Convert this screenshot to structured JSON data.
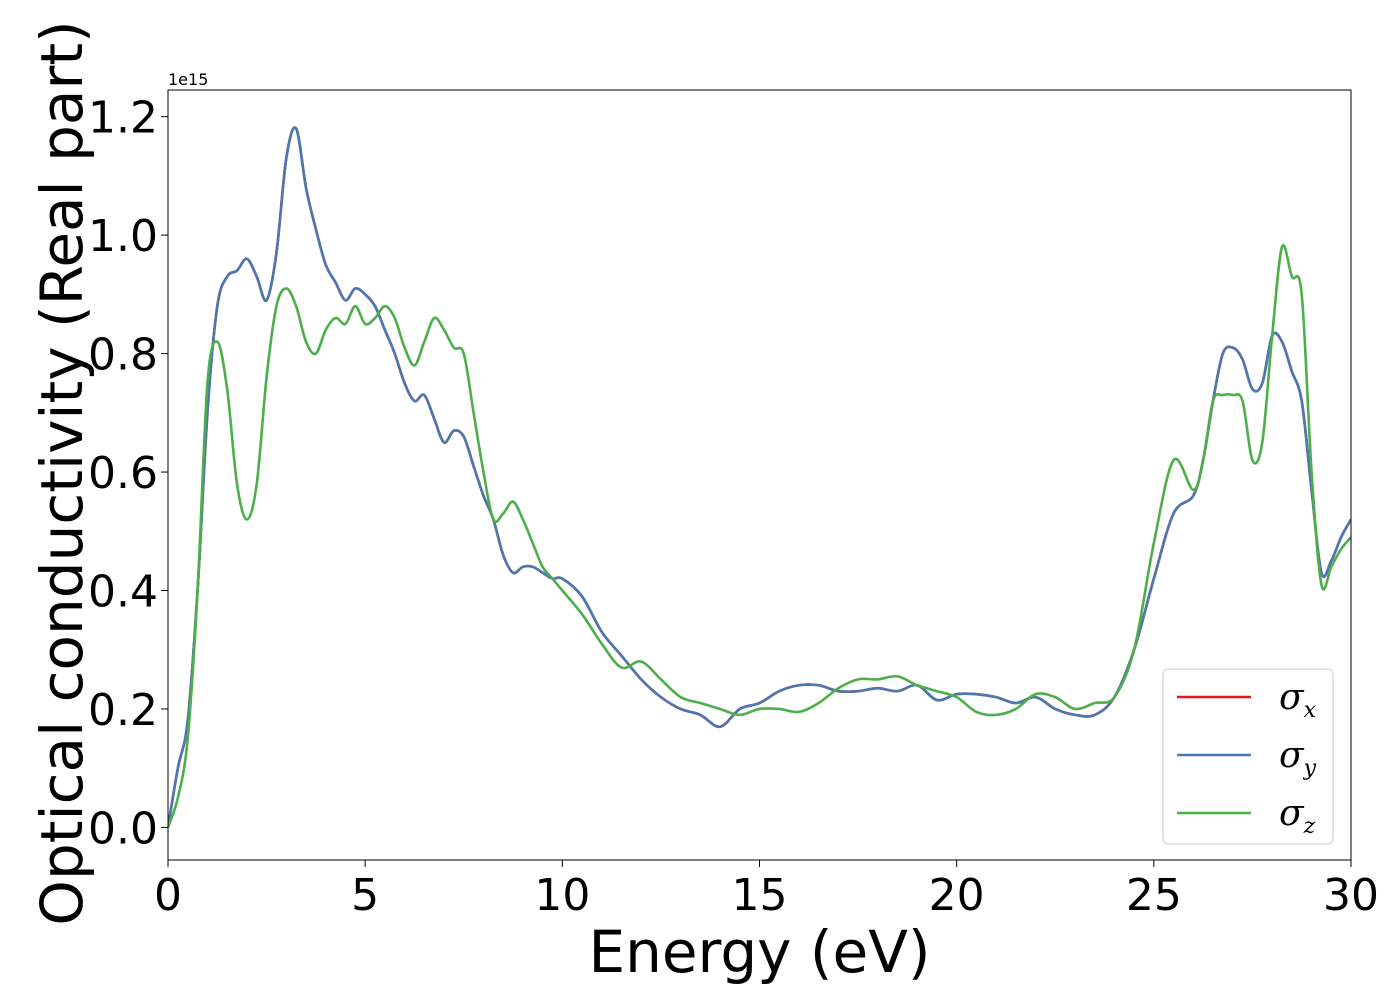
{
  "chart_data": {
    "type": "line",
    "title": "",
    "xlabel": "Energy (eV)",
    "ylabel": "Optical conductivity (Real part)",
    "y_offset_label": "1e15",
    "xlim": [
      0,
      30
    ],
    "ylim": [
      -0.055,
      1.245
    ],
    "xticks": [
      0,
      5,
      10,
      15,
      20,
      25,
      30
    ],
    "xtick_labels": [
      "0",
      "5",
      "10",
      "15",
      "20",
      "25",
      "30"
    ],
    "yticks": [
      0.0,
      0.2,
      0.4,
      0.6,
      0.8,
      1.0,
      1.2
    ],
    "ytick_labels": [
      "0.0",
      "0.2",
      "0.4",
      "0.6",
      "0.8",
      "1.0",
      "1.2"
    ],
    "grid": false,
    "legend_position": "lower right",
    "x": [
      0,
      0.25,
      0.5,
      0.75,
      1.0,
      1.25,
      1.5,
      1.75,
      2.0,
      2.25,
      2.5,
      2.75,
      3.0,
      3.25,
      3.5,
      3.75,
      4.0,
      4.25,
      4.5,
      4.75,
      5.0,
      5.25,
      5.5,
      5.75,
      6.0,
      6.25,
      6.5,
      6.75,
      7.0,
      7.25,
      7.5,
      7.75,
      8.0,
      8.25,
      8.5,
      8.75,
      9.0,
      9.25,
      9.5,
      9.75,
      10.0,
      10.5,
      11.0,
      11.5,
      12.0,
      12.5,
      13.0,
      13.5,
      14.0,
      14.5,
      15.0,
      15.5,
      16.0,
      16.5,
      17.0,
      17.5,
      18.0,
      18.5,
      19.0,
      19.5,
      20.0,
      20.5,
      21.0,
      21.5,
      22.0,
      22.5,
      23.0,
      23.5,
      24.0,
      24.5,
      25.0,
      25.5,
      26.0,
      26.25,
      26.5,
      26.75,
      27.0,
      27.25,
      27.5,
      27.75,
      28.0,
      28.25,
      28.5,
      28.75,
      29.0,
      29.25,
      29.5,
      29.75,
      30.0
    ],
    "series": [
      {
        "name": "σ",
        "subscript": "x",
        "color": "#e41a1c",
        "values": [
          0.0,
          0.1,
          0.18,
          0.4,
          0.7,
          0.88,
          0.93,
          0.94,
          0.96,
          0.93,
          0.89,
          0.97,
          1.13,
          1.18,
          1.08,
          1.01,
          0.95,
          0.92,
          0.89,
          0.91,
          0.9,
          0.88,
          0.84,
          0.8,
          0.75,
          0.72,
          0.73,
          0.69,
          0.65,
          0.67,
          0.66,
          0.61,
          0.56,
          0.52,
          0.46,
          0.43,
          0.44,
          0.44,
          0.43,
          0.42,
          0.42,
          0.39,
          0.33,
          0.29,
          0.25,
          0.22,
          0.2,
          0.19,
          0.17,
          0.2,
          0.21,
          0.23,
          0.24,
          0.24,
          0.23,
          0.23,
          0.235,
          0.23,
          0.24,
          0.215,
          0.225,
          0.225,
          0.22,
          0.21,
          0.22,
          0.2,
          0.19,
          0.19,
          0.22,
          0.3,
          0.42,
          0.53,
          0.56,
          0.62,
          0.72,
          0.8,
          0.81,
          0.79,
          0.74,
          0.75,
          0.83,
          0.82,
          0.77,
          0.72,
          0.57,
          0.43,
          0.45,
          0.49,
          0.52
        ]
      },
      {
        "name": "σ",
        "subscript": "y",
        "color": "#4a78b1",
        "values": [
          0.0,
          0.1,
          0.18,
          0.4,
          0.7,
          0.88,
          0.93,
          0.94,
          0.96,
          0.93,
          0.89,
          0.97,
          1.13,
          1.18,
          1.08,
          1.01,
          0.95,
          0.92,
          0.89,
          0.91,
          0.9,
          0.88,
          0.84,
          0.8,
          0.75,
          0.72,
          0.73,
          0.69,
          0.65,
          0.67,
          0.66,
          0.61,
          0.56,
          0.52,
          0.46,
          0.43,
          0.44,
          0.44,
          0.43,
          0.42,
          0.42,
          0.39,
          0.33,
          0.29,
          0.25,
          0.22,
          0.2,
          0.19,
          0.17,
          0.2,
          0.21,
          0.23,
          0.24,
          0.24,
          0.23,
          0.23,
          0.235,
          0.23,
          0.24,
          0.215,
          0.225,
          0.225,
          0.22,
          0.21,
          0.22,
          0.2,
          0.19,
          0.19,
          0.22,
          0.3,
          0.42,
          0.53,
          0.56,
          0.62,
          0.72,
          0.8,
          0.81,
          0.79,
          0.74,
          0.75,
          0.83,
          0.82,
          0.77,
          0.72,
          0.57,
          0.43,
          0.45,
          0.49,
          0.52
        ]
      },
      {
        "name": "σ",
        "subscript": "z",
        "color": "#4daf4a",
        "values": [
          0.0,
          0.05,
          0.15,
          0.4,
          0.75,
          0.82,
          0.74,
          0.58,
          0.52,
          0.58,
          0.76,
          0.88,
          0.91,
          0.88,
          0.82,
          0.8,
          0.84,
          0.86,
          0.85,
          0.88,
          0.85,
          0.86,
          0.88,
          0.86,
          0.81,
          0.78,
          0.82,
          0.86,
          0.84,
          0.81,
          0.8,
          0.7,
          0.6,
          0.52,
          0.53,
          0.55,
          0.52,
          0.48,
          0.44,
          0.42,
          0.4,
          0.36,
          0.31,
          0.27,
          0.28,
          0.25,
          0.22,
          0.21,
          0.2,
          0.19,
          0.2,
          0.2,
          0.195,
          0.21,
          0.235,
          0.25,
          0.25,
          0.255,
          0.24,
          0.23,
          0.22,
          0.195,
          0.19,
          0.2,
          0.225,
          0.22,
          0.2,
          0.21,
          0.22,
          0.3,
          0.48,
          0.62,
          0.57,
          0.62,
          0.72,
          0.73,
          0.73,
          0.72,
          0.62,
          0.65,
          0.83,
          0.98,
          0.93,
          0.9,
          0.6,
          0.41,
          0.44,
          0.47,
          0.49
        ]
      }
    ]
  }
}
